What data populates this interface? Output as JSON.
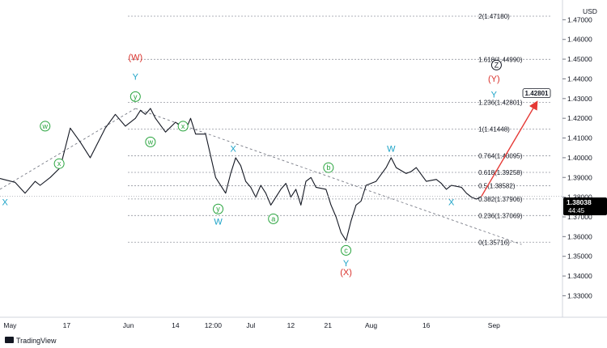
{
  "chart_data": {
    "type": "line",
    "currency": "USD",
    "ylim": [
      1.3195,
      1.48
    ],
    "y_ticks": [
      "1.47000",
      "1.46000",
      "1.45000",
      "1.44000",
      "1.43000",
      "1.42000",
      "1.41000",
      "1.40000",
      "1.39000",
      "1.38000",
      "1.37000",
      "1.36000",
      "1.35000",
      "1.34000",
      "1.33000"
    ],
    "x_ticks": [
      "May",
      "17",
      "Jun",
      "14",
      "12:00",
      "Jul",
      "12",
      "21",
      "Aug",
      "16",
      "Sep"
    ],
    "last_price": "1.38038",
    "countdown": "44:45",
    "target_price": "1.42801",
    "series": [
      {
        "name": "",
        "x": [
          0,
          3,
          5,
          7,
          8,
          10,
          12,
          13,
          14,
          16,
          18,
          20,
          21,
          23,
          25,
          27,
          28,
          29,
          30,
          31,
          33,
          35,
          37,
          38,
          39,
          41,
          43,
          45,
          46,
          47,
          48,
          49,
          50,
          51,
          52,
          53,
          54,
          56,
          57,
          58,
          59,
          60,
          61,
          62,
          63,
          65,
          66,
          67,
          68,
          69,
          70,
          71,
          72,
          73,
          75,
          77,
          78,
          79,
          81,
          82,
          83,
          85,
          87,
          88,
          89,
          90,
          92,
          93,
          94,
          95,
          96
        ],
        "y": [
          1.3895,
          1.3875,
          1.382,
          1.388,
          1.386,
          1.39,
          1.395,
          1.405,
          1.415,
          1.408,
          1.4,
          1.41,
          1.415,
          1.422,
          1.416,
          1.42,
          1.424,
          1.422,
          1.425,
          1.42,
          1.413,
          1.418,
          1.414,
          1.42,
          1.412,
          1.412,
          1.39,
          1.382,
          1.392,
          1.4,
          1.396,
          1.388,
          1.385,
          1.38,
          1.386,
          1.382,
          1.376,
          1.384,
          1.387,
          1.38,
          1.384,
          1.376,
          1.388,
          1.39,
          1.385,
          1.384,
          1.376,
          1.37,
          1.362,
          1.358,
          1.368,
          1.376,
          1.378,
          1.386,
          1.388,
          1.395,
          1.4,
          1.395,
          1.392,
          1.393,
          1.395,
          1.388,
          1.389,
          1.387,
          1.384,
          1.386,
          1.385,
          1.382,
          1.38,
          1.379,
          1.38038
        ]
      }
    ],
    "projection": {
      "from": [
        96,
        1.38038
      ],
      "to": [
        107,
        1.42801
      ]
    },
    "trendline": {
      "from": [
        0,
        1.384
      ],
      "via": [
        27,
        1.425
      ],
      "to": [
        104,
        1.356
      ]
    },
    "fib_levels": [
      {
        "ratio": "2",
        "price": "1.47180",
        "value": 1.4718
      },
      {
        "ratio": "1.618",
        "price": "1.44990",
        "value": 1.4499
      },
      {
        "ratio": "1.236",
        "price": "1.42801",
        "value": 1.42801
      },
      {
        "ratio": "1",
        "price": "1.41448",
        "value": 1.41448
      },
      {
        "ratio": "0.764",
        "price": "1.40095",
        "value": 1.40095
      },
      {
        "ratio": "0.618",
        "price": "1.39258",
        "value": 1.39258
      },
      {
        "ratio": "0.5",
        "price": "1.38582",
        "value": 1.38582
      },
      {
        "ratio": "0.382",
        "price": "1.37906",
        "value": 1.37906
      },
      {
        "ratio": "0.236",
        "price": "1.37069",
        "value": 1.37069
      },
      {
        "ratio": "0",
        "price": "1.35716",
        "value": 1.35716
      }
    ],
    "wave_labels": [
      {
        "text": "X",
        "x": 1,
        "y": 1.376,
        "color": "#1aa2c7"
      },
      {
        "text": "Y",
        "x": 27,
        "y": 1.4395,
        "color": "#1aa2c7"
      },
      {
        "text": "(W)",
        "x": 27,
        "y": 1.4495,
        "color": "#d9302a"
      },
      {
        "text": "W",
        "x": 43.5,
        "y": 1.366,
        "color": "#1aa2c7"
      },
      {
        "text": "X",
        "x": 46.5,
        "y": 1.403,
        "color": "#1aa2c7"
      },
      {
        "text": "Y",
        "x": 69,
        "y": 1.345,
        "color": "#1aa2c7"
      },
      {
        "text": "(X)",
        "x": 69,
        "y": 1.3405,
        "color": "#d9302a"
      },
      {
        "text": "W",
        "x": 78,
        "y": 1.403,
        "color": "#1aa2c7"
      },
      {
        "text": "X",
        "x": 90,
        "y": 1.376,
        "color": "#1aa2c7"
      },
      {
        "text": "(Y)",
        "x": 98.5,
        "y": 1.4385,
        "color": "#d9302a"
      },
      {
        "text": "Y",
        "x": 98.5,
        "y": 1.4305,
        "color": "#1aa2c7"
      }
    ],
    "circle_labels": [
      {
        "text": "w",
        "x": 9,
        "y": 1.416,
        "color": "#27a33c"
      },
      {
        "text": "x",
        "x": 11.8,
        "y": 1.397,
        "color": "#27a33c"
      },
      {
        "text": "y",
        "x": 27,
        "y": 1.431,
        "color": "#27a33c"
      },
      {
        "text": "w",
        "x": 30,
        "y": 1.408,
        "color": "#27a33c"
      },
      {
        "text": "x",
        "x": 36.5,
        "y": 1.416,
        "color": "#27a33c"
      },
      {
        "text": "y",
        "x": 43.5,
        "y": 1.374,
        "color": "#27a33c"
      },
      {
        "text": "a",
        "x": 54.5,
        "y": 1.369,
        "color": "#27a33c"
      },
      {
        "text": "b",
        "x": 65.5,
        "y": 1.395,
        "color": "#27a33c"
      },
      {
        "text": "c",
        "x": 69,
        "y": 1.353,
        "color": "#27a33c"
      },
      {
        "text": "Z",
        "x": 99,
        "y": 1.447,
        "color": "#131722"
      }
    ]
  },
  "brand": {
    "label": "TradingView"
  }
}
